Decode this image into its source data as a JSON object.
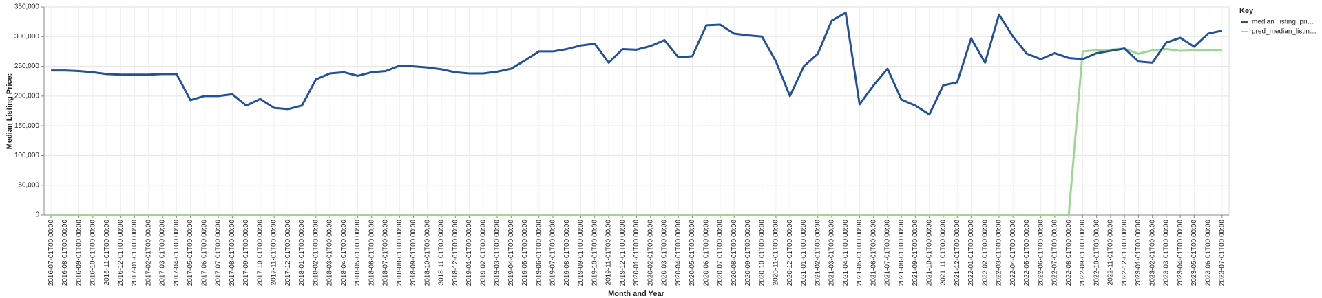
{
  "chart_data": {
    "type": "line",
    "x_label": "Month and Year",
    "y_label": "Median Listing Price:",
    "legend_title": "Key",
    "legend_position": "right",
    "grid": true,
    "categories": [
      "2016-07-01T00:00:00",
      "2016-08-01T00:00:00",
      "2016-09-01T00:00:00",
      "2016-10-01T00:00:00",
      "2016-11-01T00:00:00",
      "2016-12-01T00:00:00",
      "2017-01-01T00:00:00",
      "2017-02-01T00:00:00",
      "2017-03-01T00:00:00",
      "2017-04-01T00:00:00",
      "2017-05-01T00:00:00",
      "2017-06-01T00:00:00",
      "2017-07-01T00:00:00",
      "2017-08-01T00:00:00",
      "2017-09-01T00:00:00",
      "2017-10-01T00:00:00",
      "2017-11-01T00:00:00",
      "2017-12-01T00:00:00",
      "2018-01-01T00:00:00",
      "2018-02-01T00:00:00",
      "2018-03-01T00:00:00",
      "2018-04-01T00:00:00",
      "2018-05-01T00:00:00",
      "2018-06-01T00:00:00",
      "2018-07-01T00:00:00",
      "2018-08-01T00:00:00",
      "2018-09-01T00:00:00",
      "2018-10-01T00:00:00",
      "2018-11-01T00:00:00",
      "2018-12-01T00:00:00",
      "2019-01-01T00:00:00",
      "2019-02-01T00:00:00",
      "2019-03-01T00:00:00",
      "2019-04-01T00:00:00",
      "2019-05-01T00:00:00",
      "2019-06-01T00:00:00",
      "2019-07-01T00:00:00",
      "2019-08-01T00:00:00",
      "2019-09-01T00:00:00",
      "2019-10-01T00:00:00",
      "2019-11-01T00:00:00",
      "2019-12-01T00:00:00",
      "2020-01-01T00:00:00",
      "2020-02-01T00:00:00",
      "2020-03-01T00:00:00",
      "2020-04-01T00:00:00",
      "2020-05-01T00:00:00",
      "2020-06-01T00:00:00",
      "2020-07-01T00:00:00",
      "2020-08-01T00:00:00",
      "2020-09-01T00:00:00",
      "2020-10-01T00:00:00",
      "2020-11-01T00:00:00",
      "2020-12-01T00:00:00",
      "2021-01-01T00:00:00",
      "2021-02-01T00:00:00",
      "2021-03-01T00:00:00",
      "2021-04-01T00:00:00",
      "2021-05-01T00:00:00",
      "2021-06-01T00:00:00",
      "2021-07-01T00:00:00",
      "2021-08-01T00:00:00",
      "2021-09-01T00:00:00",
      "2021-10-01T00:00:00",
      "2021-11-01T00:00:00",
      "2021-12-01T00:00:00",
      "2022-01-01T00:00:00",
      "2022-02-01T00:00:00",
      "2022-03-01T00:00:00",
      "2022-04-01T00:00:00",
      "2022-05-01T00:00:00",
      "2022-06-01T00:00:00",
      "2022-07-01T00:00:00",
      "2022-08-01T00:00:00",
      "2022-09-01T00:00:00",
      "2022-10-01T00:00:00",
      "2022-11-01T00:00:00",
      "2022-12-01T00:00:00",
      "2023-01-01T00:00:00",
      "2023-02-01T00:00:00",
      "2023-03-01T00:00:00",
      "2023-04-01T00:00:00",
      "2023-05-01T00:00:00",
      "2023-06-01T00:00:00",
      "2023-07-01T00:00:00"
    ],
    "series": [
      {
        "name": "median_listing_pri…",
        "color": "#22509a",
        "values": [
          243000,
          243000,
          242000,
          240000,
          237000,
          236000,
          236000,
          236000,
          237000,
          237000,
          193000,
          200000,
          200000,
          203000,
          184000,
          195000,
          180000,
          178000,
          184000,
          228000,
          238000,
          240000,
          234000,
          240000,
          242000,
          251000,
          250000,
          248000,
          245000,
          240000,
          238000,
          238000,
          241000,
          246000,
          260000,
          275000,
          275000,
          279000,
          285000,
          288000,
          256000,
          279000,
          278000,
          284000,
          294000,
          265000,
          267000,
          319000,
          320000,
          305000,
          302000,
          300000,
          258000,
          200000,
          250000,
          271000,
          327000,
          340000,
          186000,
          218000,
          246000,
          194000,
          184000,
          169000,
          218000,
          223000,
          297000,
          256000,
          337000,
          300000,
          271000,
          262000,
          272000,
          264000,
          262000,
          272000,
          276000,
          280000,
          258000,
          256000,
          290000,
          298000,
          283000,
          305000,
          310000
        ]
      },
      {
        "name": "pred_median_listin…",
        "color": "#9cd891",
        "values": [
          0,
          0,
          0,
          0,
          0,
          0,
          0,
          0,
          0,
          0,
          0,
          0,
          0,
          0,
          0,
          0,
          0,
          0,
          0,
          0,
          0,
          0,
          0,
          0,
          0,
          0,
          0,
          0,
          0,
          0,
          0,
          0,
          0,
          0,
          0,
          0,
          0,
          0,
          0,
          0,
          0,
          0,
          0,
          0,
          0,
          0,
          0,
          0,
          0,
          0,
          0,
          0,
          0,
          0,
          0,
          0,
          0,
          0,
          0,
          0,
          0,
          0,
          0,
          0,
          0,
          0,
          0,
          0,
          0,
          0,
          0,
          0,
          0,
          0,
          275000,
          277000,
          278000,
          280000,
          271000,
          277000,
          279000,
          276000,
          277000,
          278000,
          277000
        ]
      }
    ],
    "ylim": [
      0,
      350000
    ],
    "yticks": [
      0,
      {
        "value": 50000,
        "label": "50,000"
      },
      {
        "value": 100000,
        "label": "100,000"
      },
      {
        "value": 150000,
        "label": "150,000"
      },
      {
        "value": 200000,
        "label": "200,000"
      },
      {
        "value": 250000,
        "label": "250,000"
      },
      {
        "value": 300000,
        "label": "300,000"
      },
      {
        "value": 350000,
        "label": "350,000"
      }
    ]
  }
}
